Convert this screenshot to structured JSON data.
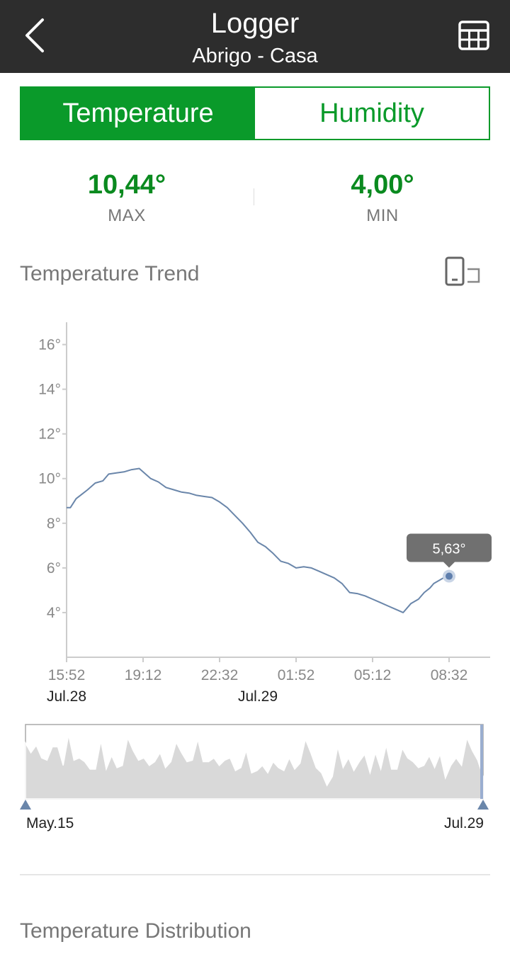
{
  "header": {
    "title": "Logger",
    "subtitle": "Abrigo - Casa",
    "back_icon": "chevron-left-icon",
    "table_icon": "table-grid-icon"
  },
  "tabs": [
    {
      "label": "Temperature",
      "active": true
    },
    {
      "label": "Humidity",
      "active": false
    }
  ],
  "stats": {
    "max": {
      "value": "10,44°",
      "label": "MAX"
    },
    "min": {
      "value": "4,00°",
      "label": "MIN"
    }
  },
  "trend": {
    "title": "Temperature Trend",
    "rotate_icon": "rotate-landscape-icon"
  },
  "colors": {
    "accent": "#0a9a2a",
    "header_bg": "#2d2d2d",
    "line": "#6a86aa",
    "tooltip_bg": "#707070",
    "overview_fill": "#d9d9d9"
  },
  "chart_data": {
    "type": "line",
    "ylim": [
      2,
      17
    ],
    "y_ticks": [
      "4°",
      "6°",
      "8°",
      "10°",
      "12°",
      "14°",
      "16°"
    ],
    "y_tick_values": [
      4,
      6,
      8,
      10,
      12,
      14,
      16
    ],
    "x_ticks": [
      "15:52",
      "19:12",
      "22:32",
      "01:52",
      "05:12",
      "08:32"
    ],
    "x_tick_values": [
      0,
      200,
      400,
      600,
      800,
      1000
    ],
    "x_dates": [
      {
        "label": "Jul.28",
        "at": 0
      },
      {
        "label": "Jul.29",
        "at": 500
      }
    ],
    "xlim": [
      0,
      1100
    ],
    "x_unit": "minutes from 15:52 Jul.28",
    "series": [
      {
        "x": [
          0,
          10,
          25,
          40,
          55,
          75,
          95,
          110,
          130,
          150,
          170,
          190,
          200,
          220,
          240,
          260,
          280,
          300,
          320,
          340,
          360,
          380,
          400,
          420,
          440,
          460,
          480,
          500,
          520,
          540,
          560,
          580,
          600,
          620,
          640,
          660,
          680,
          700,
          720,
          740,
          760,
          780,
          800,
          820,
          840,
          860,
          880,
          900,
          920,
          935,
          950,
          960,
          970,
          980,
          990,
          1000
        ],
        "y": [
          8.7,
          8.7,
          9.1,
          9.3,
          9.5,
          9.8,
          9.9,
          10.2,
          10.25,
          10.3,
          10.4,
          10.45,
          10.3,
          10.0,
          9.85,
          9.6,
          9.5,
          9.4,
          9.35,
          9.25,
          9.2,
          9.15,
          8.95,
          8.7,
          8.35,
          8.0,
          7.6,
          7.15,
          6.95,
          6.65,
          6.3,
          6.2,
          6.0,
          6.05,
          6.0,
          5.85,
          5.7,
          5.55,
          5.3,
          4.9,
          4.85,
          4.75,
          4.6,
          4.45,
          4.3,
          4.15,
          4.0,
          4.4,
          4.6,
          4.9,
          5.1,
          5.3,
          5.4,
          5.5,
          5.6,
          5.63
        ]
      }
    ],
    "highlight": {
      "x": 1000,
      "y": 5.63,
      "label": "5,63°"
    }
  },
  "overview": {
    "start_label": "May.15",
    "end_label": "Jul.29",
    "values": [
      0.75,
      0.62,
      0.72,
      0.55,
      0.52,
      0.7,
      0.7,
      0.45,
      0.86,
      0.52,
      0.55,
      0.5,
      0.4,
      0.4,
      0.78,
      0.4,
      0.58,
      0.42,
      0.45,
      0.82,
      0.65,
      0.52,
      0.55,
      0.45,
      0.5,
      0.62,
      0.42,
      0.5,
      0.76,
      0.62,
      0.5,
      0.52,
      0.8,
      0.5,
      0.5,
      0.55,
      0.45,
      0.52,
      0.55,
      0.38,
      0.42,
      0.65,
      0.35,
      0.38,
      0.45,
      0.35,
      0.5,
      0.42,
      0.38,
      0.55,
      0.4,
      0.48,
      0.8,
      0.62,
      0.42,
      0.35,
      0.18,
      0.3,
      0.7,
      0.42,
      0.55,
      0.38,
      0.5,
      0.6,
      0.35,
      0.62,
      0.4,
      0.72,
      0.4,
      0.4,
      0.68,
      0.55,
      0.5,
      0.42,
      0.45,
      0.58,
      0.42,
      0.6,
      0.28,
      0.45,
      0.55,
      0.45,
      0.82,
      0.65,
      0.52,
      0.3
    ]
  },
  "distribution": {
    "title": "Temperature Distribution"
  }
}
